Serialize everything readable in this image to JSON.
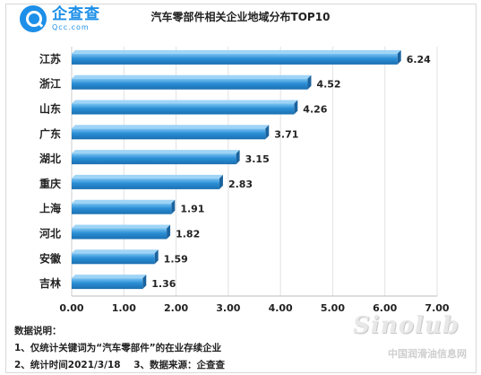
{
  "logo": {
    "name": "企查查",
    "url": "Qcc.com"
  },
  "chart_data": {
    "type": "bar",
    "orientation": "horizontal",
    "title": "汽车零部件相关企业地域分布TOP10",
    "categories": [
      "江苏",
      "浙江",
      "山东",
      "广东",
      "湖北",
      "重庆",
      "上海",
      "河北",
      "安徽",
      "吉林"
    ],
    "values": [
      6.24,
      4.52,
      4.26,
      3.71,
      3.15,
      2.83,
      1.91,
      1.82,
      1.59,
      1.36
    ],
    "value_labels": [
      "6.24",
      "4.52",
      "4.26",
      "3.71",
      "3.15",
      "2.83",
      "1.91",
      "1.82",
      "1.59",
      "1.36"
    ],
    "xlim": [
      0,
      7
    ],
    "x_ticks": [
      "0.00",
      "1.00",
      "2.00",
      "3.00",
      "4.00",
      "5.00",
      "6.00",
      "7.00"
    ],
    "xlabel": "",
    "ylabel": "",
    "grid": true,
    "bar_color": "#2b8fd6"
  },
  "notes": {
    "heading": "数据说明：",
    "line1": "1、仅统计关键词为“汽车零部件”的在业存续企业",
    "line2": "2、统计时间2021/3/18    3、数据来源：企查查"
  },
  "watermark": {
    "brand": "Sinolub",
    "sub": "中国润滑油信息网"
  }
}
